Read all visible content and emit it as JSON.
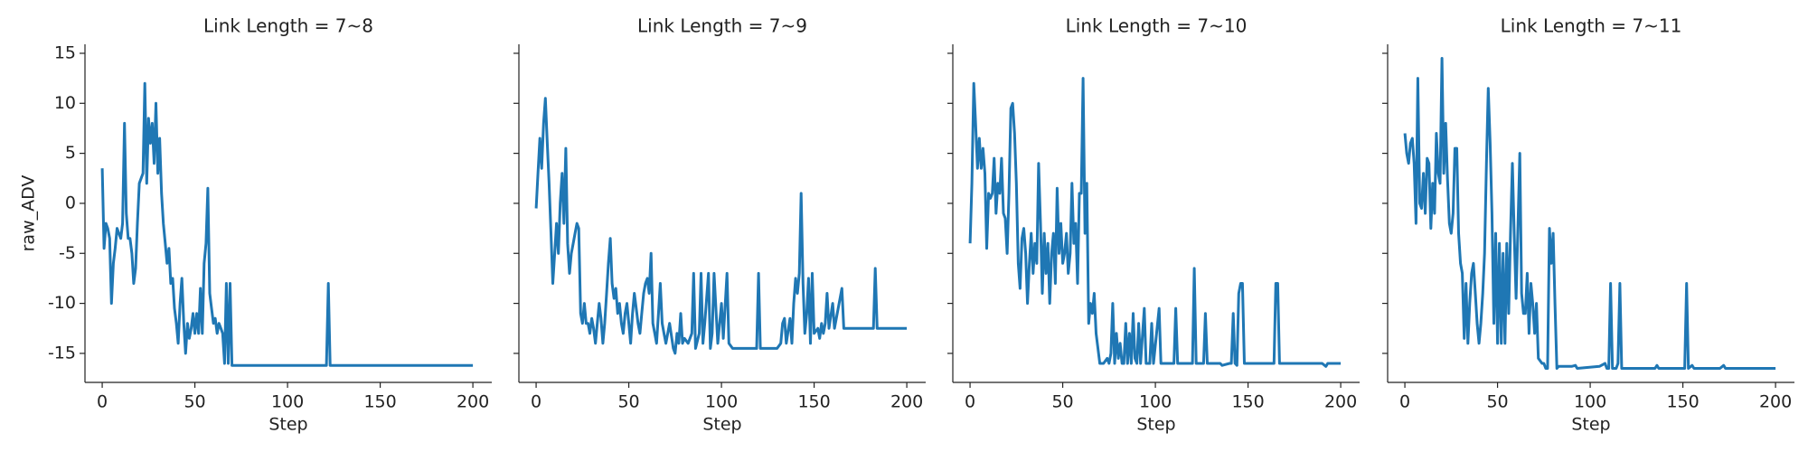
{
  "chart_data": [
    {
      "type": "line",
      "title": "Link Length = 7~8",
      "xlabel": "Step",
      "ylabel": "raw_ADV",
      "color": "#1f77b4",
      "xlim": [
        -9.3,
        210.2
      ],
      "xticks": [
        0,
        50,
        100,
        150,
        200
      ],
      "ylim": [
        -17.9,
        15.9
      ],
      "yticks": [
        -15,
        -10,
        -5,
        0,
        5,
        10,
        15
      ],
      "ytick_labels": true,
      "x": [
        0,
        1,
        2,
        3,
        4,
        5,
        6,
        7,
        8,
        9,
        10,
        11,
        12,
        13,
        14,
        15,
        16,
        17,
        18,
        19,
        20,
        21,
        22,
        23,
        24,
        25,
        26,
        27,
        28,
        29,
        30,
        31,
        32,
        33,
        34,
        35,
        36,
        37,
        38,
        39,
        40,
        41,
        42,
        43,
        44,
        45,
        46,
        47,
        48,
        49,
        50,
        51,
        52,
        53,
        54,
        55,
        56,
        57,
        58,
        59,
        60,
        61,
        62,
        63,
        64,
        65,
        66,
        67,
        68,
        69,
        70,
        121,
        122,
        123,
        200
      ],
      "values": [
        3.5,
        -4.5,
        -2,
        -2.5,
        -3.5,
        -10,
        -6,
        -4.5,
        -2.5,
        -3,
        -3.5,
        -2,
        8,
        -1,
        -3.5,
        -3.5,
        -5,
        -8,
        -6.5,
        -2,
        2,
        2.5,
        3,
        12,
        2,
        8.5,
        6,
        8,
        4,
        10,
        3,
        6.5,
        1,
        -2,
        -4,
        -6,
        -4.5,
        -8,
        -7.5,
        -10.5,
        -12,
        -14,
        -10,
        -7.5,
        -12,
        -15,
        -12,
        -13.5,
        -12.5,
        -11,
        -13,
        -11,
        -13,
        -8.5,
        -13,
        -6,
        -4,
        1.5,
        -9,
        -10.5,
        -12,
        -11.5,
        -13,
        -12,
        -12.5,
        -13,
        -16,
        -8,
        -16,
        -8,
        -16.2,
        -16.2,
        -8,
        -16.2,
        -16.2
      ]
    },
    {
      "type": "line",
      "title": "Link Length = 7~9",
      "xlabel": "Step",
      "color": "#1f77b4",
      "xlim": [
        -9.3,
        210.2
      ],
      "xticks": [
        0,
        50,
        100,
        150,
        200
      ],
      "ylim": [
        -17.9,
        15.9
      ],
      "yticks": [
        -15,
        -10,
        -5,
        0,
        5,
        10,
        15
      ],
      "ytick_labels": false,
      "x": [
        0,
        1,
        2,
        3,
        4,
        5,
        6,
        7,
        8,
        9,
        10,
        11,
        12,
        13,
        14,
        15,
        16,
        17,
        18,
        19,
        20,
        21,
        22,
        23,
        24,
        25,
        26,
        27,
        28,
        29,
        30,
        31,
        32,
        33,
        34,
        35,
        36,
        37,
        38,
        39,
        40,
        41,
        42,
        43,
        44,
        45,
        46,
        47,
        48,
        49,
        50,
        51,
        52,
        53,
        54,
        55,
        56,
        57,
        58,
        59,
        60,
        61,
        62,
        63,
        64,
        65,
        66,
        67,
        68,
        69,
        70,
        72,
        74,
        75,
        76,
        77,
        78,
        79,
        80,
        82,
        84,
        85,
        86,
        88,
        89,
        90,
        91,
        93,
        94,
        95,
        96,
        98,
        100,
        101,
        103,
        104,
        106,
        119,
        120,
        121,
        130,
        132,
        133,
        134,
        135,
        137,
        138,
        139,
        140,
        141,
        142,
        143,
        144,
        145,
        146,
        147,
        148,
        149,
        150,
        152,
        153,
        154,
        155,
        156,
        157,
        158,
        160,
        161,
        165,
        166,
        182,
        183,
        184,
        200
      ],
      "values": [
        -0.5,
        3,
        6.5,
        3.5,
        8,
        10.5,
        6,
        2,
        -3,
        -8,
        -5,
        -2,
        -5,
        0,
        3,
        -2,
        5.5,
        -4,
        -7,
        -5,
        -4,
        -3,
        -2,
        -2.5,
        -11,
        -12,
        -10,
        -12,
        -12,
        -13,
        -11.5,
        -12.5,
        -14,
        -12,
        -10,
        -11.5,
        -14,
        -12,
        -9,
        -6,
        -3.5,
        -8,
        -9.5,
        -8.5,
        -11,
        -10,
        -12,
        -13,
        -11,
        -10,
        -12,
        -14,
        -11,
        -9,
        -10.5,
        -12,
        -13,
        -11,
        -9,
        -8,
        -7.5,
        -9,
        -5,
        -12,
        -13,
        -14,
        -11,
        -8,
        -12,
        -13,
        -14,
        -12,
        -14.5,
        -15,
        -13,
        -14,
        -11,
        -14,
        -13.5,
        -14,
        -13,
        -7,
        -14.5,
        -13,
        -7,
        -14,
        -12,
        -7,
        -14.5,
        -13,
        -7,
        -14,
        -10,
        -13.5,
        -7,
        -14,
        -14.5,
        -14.5,
        -7,
        -14.5,
        -14.5,
        -14,
        -12,
        -11.5,
        -14,
        -11.5,
        -14,
        -10,
        -7.5,
        -9,
        -7,
        1,
        -8,
        -13,
        -11,
        -7.5,
        -14,
        -7,
        -13,
        -12.5,
        -13.5,
        -12,
        -13,
        -12,
        -9,
        -12.5,
        -10,
        -12.5,
        -8.5,
        -12.5,
        -12.5,
        -6.5,
        -12.5,
        -12.5
      ]
    },
    {
      "type": "line",
      "title": "Link Length = 7~10",
      "xlabel": "Step",
      "color": "#1f77b4",
      "xlim": [
        -9.3,
        210.2
      ],
      "xticks": [
        0,
        50,
        100,
        150,
        200
      ],
      "ylim": [
        -17.9,
        15.9
      ],
      "yticks": [
        -15,
        -10,
        -5,
        0,
        5,
        10,
        15
      ],
      "ytick_labels": false,
      "x": [
        0,
        1,
        2,
        3,
        4,
        5,
        6,
        7,
        8,
        9,
        10,
        11,
        12,
        13,
        14,
        15,
        16,
        17,
        18,
        19,
        20,
        21,
        22,
        23,
        24,
        25,
        26,
        27,
        28,
        29,
        30,
        31,
        32,
        33,
        34,
        35,
        36,
        37,
        38,
        39,
        40,
        41,
        42,
        43,
        44,
        45,
        46,
        47,
        48,
        49,
        50,
        51,
        52,
        53,
        54,
        55,
        56,
        57,
        58,
        59,
        60,
        61,
        62,
        63,
        64,
        65,
        66,
        67,
        68,
        70,
        72,
        74,
        75,
        76,
        77,
        78,
        79,
        80,
        81,
        82,
        83,
        84,
        85,
        86,
        87,
        88,
        89,
        90,
        91,
        92,
        94,
        95,
        97,
        98,
        99,
        102,
        103,
        110,
        111,
        112,
        120,
        121,
        122,
        126,
        127,
        128,
        135,
        136,
        140,
        141,
        142,
        143,
        144,
        145,
        146,
        147,
        148,
        164,
        165,
        166,
        167,
        190,
        192,
        193,
        200
      ],
      "values": [
        -4,
        2,
        12,
        8,
        3.5,
        6.5,
        3.5,
        5.5,
        3,
        -4.5,
        1,
        0.5,
        1,
        4.5,
        -1,
        2,
        1,
        4.5,
        -1,
        -1.5,
        -5,
        1,
        9.5,
        10,
        7,
        2,
        -6,
        -8.5,
        -3.5,
        -2.5,
        -5,
        -10,
        -6,
        -3,
        -7,
        -4,
        -6,
        4,
        -2,
        -9,
        -3,
        -7,
        -4,
        -10,
        -5,
        -3,
        -8,
        1.5,
        -5,
        -2,
        -6,
        -5,
        -3,
        -7,
        -5,
        2,
        -4,
        -2,
        -8,
        1,
        1,
        12.5,
        -3,
        2,
        -12,
        -10,
        -11,
        -9,
        -13,
        -16,
        -16,
        -15.5,
        -16,
        -15,
        -10,
        -16,
        -13,
        -15.5,
        -14,
        -16,
        -16,
        -12,
        -16,
        -13,
        -16,
        -11,
        -15.5,
        -16,
        -12,
        -16,
        -10.5,
        -16,
        -16,
        -12,
        -16,
        -10.5,
        -16,
        -16,
        -10.5,
        -16,
        -16,
        -6.5,
        -16,
        -16,
        -11,
        -16,
        -16,
        -16.2,
        -16,
        -16,
        -11,
        -16,
        -16.2,
        -9,
        -8,
        -8,
        -16,
        -16,
        -8,
        -8,
        -16,
        -16,
        -16.3,
        -16,
        -16
      ]
    },
    {
      "type": "line",
      "title": "Link Length = 7~11",
      "xlabel": "Step",
      "color": "#1f77b4",
      "xlim": [
        -9.3,
        210.2
      ],
      "xticks": [
        0,
        50,
        100,
        150,
        200
      ],
      "ylim": [
        -17.9,
        15.9
      ],
      "yticks": [
        -15,
        -10,
        -5,
        0,
        5,
        10,
        15
      ],
      "ytick_labels": false,
      "x": [
        0,
        1,
        2,
        3,
        4,
        5,
        6,
        7,
        8,
        9,
        10,
        11,
        12,
        13,
        14,
        15,
        16,
        17,
        18,
        19,
        20,
        21,
        22,
        23,
        24,
        25,
        26,
        27,
        28,
        29,
        30,
        31,
        32,
        33,
        34,
        35,
        36,
        37,
        38,
        39,
        40,
        41,
        42,
        43,
        44,
        45,
        46,
        47,
        48,
        49,
        50,
        51,
        52,
        53,
        54,
        55,
        56,
        57,
        58,
        59,
        60,
        61,
        62,
        63,
        64,
        65,
        66,
        67,
        68,
        69,
        70,
        71,
        72,
        74,
        75,
        76,
        77,
        78,
        79,
        80,
        81,
        82,
        83,
        90,
        92,
        93,
        105,
        108,
        109,
        110,
        111,
        112,
        114,
        115,
        116,
        117,
        135,
        136,
        137,
        150,
        151,
        152,
        153,
        155,
        156,
        170,
        172,
        173,
        200
      ],
      "values": [
        7,
        5,
        4,
        6,
        6.5,
        4,
        -2,
        12.5,
        0,
        -0.5,
        3,
        -1,
        4.5,
        4,
        -2.5,
        2,
        -1,
        7,
        3,
        2,
        14.5,
        3,
        8,
        2.5,
        -2,
        -3,
        -1,
        5.5,
        5.5,
        -3,
        -6,
        -7,
        -13.5,
        -8,
        -14,
        -10,
        -7,
        -6,
        -9,
        -12,
        -14,
        -12,
        -9,
        -5,
        4,
        11.5,
        6,
        -1,
        -12,
        -3,
        -14,
        -4,
        -14,
        -5,
        -14,
        -4,
        -11,
        -3,
        4,
        -3,
        -9.5,
        -2.5,
        5,
        -9,
        -11,
        -11,
        -7,
        -13,
        -8,
        -10,
        -13,
        -10,
        -15.5,
        -16,
        -16,
        -16.5,
        -16.5,
        -2.5,
        -6,
        -3,
        -10,
        -16.5,
        -16.3,
        -16.3,
        -16.2,
        -16.5,
        -16.3,
        -16,
        -16.5,
        -16.5,
        -8,
        -16.5,
        -16.5,
        -16,
        -8,
        -16.5,
        -16.5,
        -16.2,
        -16.5,
        -16.5,
        -16.5,
        -8,
        -16.5,
        -16.2,
        -16.5,
        -16.5,
        -16.2,
        -16.5,
        -16.5
      ]
    }
  ]
}
